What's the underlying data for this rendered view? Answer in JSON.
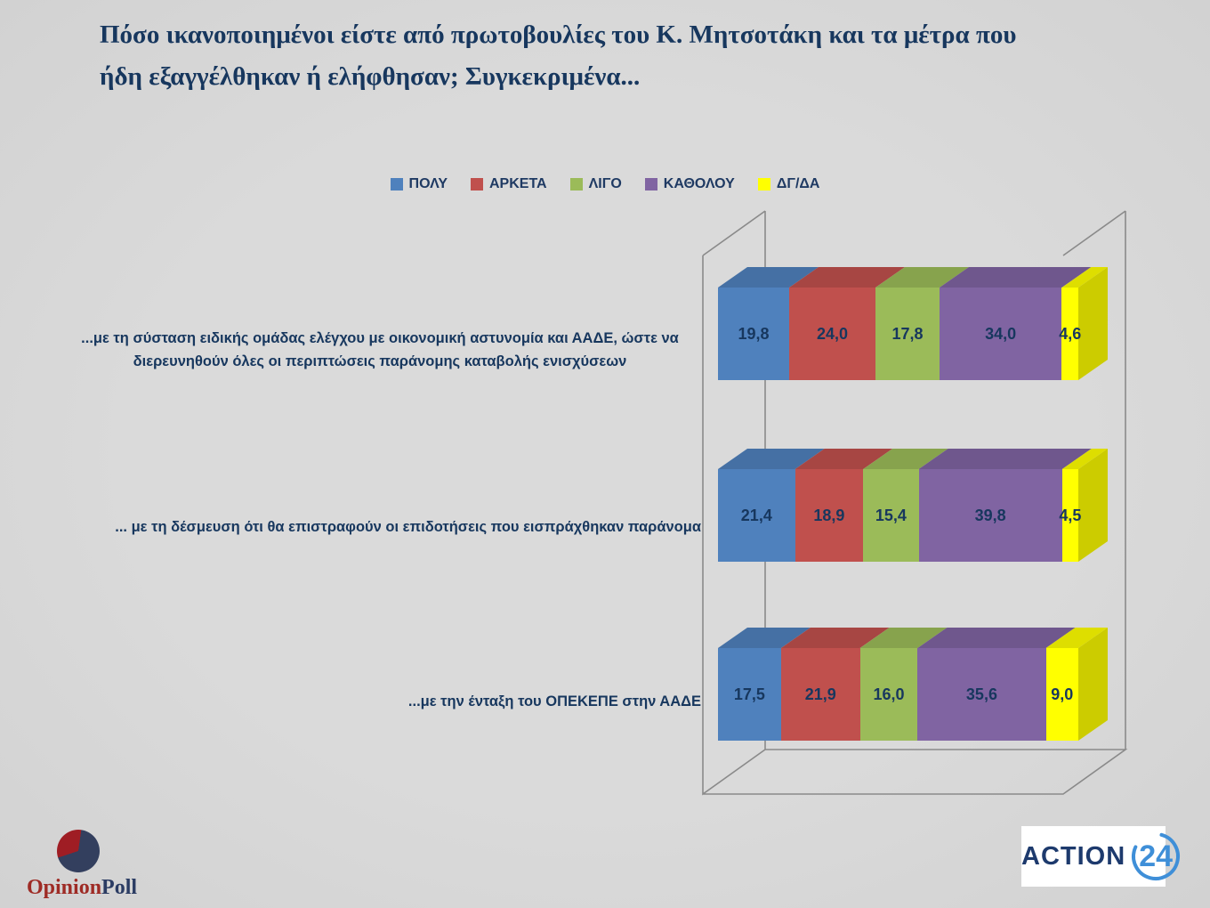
{
  "background": "#d8d8d8",
  "title": {
    "lines": [
      "Πόσο ικανοποιημένοι είστε από πρωτοβουλίες του Κ. Μητσοτάκη και τα μέτρα που",
      "ήδη εξαγγέλθηκαν ή ελήφθησαν; Συγκεκριμένα..."
    ],
    "color": "#17375e"
  },
  "legend": {
    "items": [
      {
        "label": "ΠΟΛΥ",
        "color": "#4f81bd"
      },
      {
        "label": "ΑΡΚΕΤΑ",
        "color": "#c0504d"
      },
      {
        "label": "ΛΙΓΟ",
        "color": "#9bbb59"
      },
      {
        "label": "ΚΑΘΟΛΟΥ",
        "color": "#8064a2"
      },
      {
        "label": "ΔΓ/ΔΑ",
        "color": "#ffff00"
      }
    ]
  },
  "chart_data": {
    "type": "bar",
    "variant": "3d-horizontal-stacked",
    "title": "Πόσο ικανοποιημένοι είστε από πρωτοβουλίες του Κ. Μητσοτάκη και τα μέτρα που ήδη εξαγγέλθηκαν ή ελήφθησαν; Συγκεκριμένα...",
    "series": [
      "ΠΟΛΥ",
      "ΑΡΚΕΤΑ",
      "ΛΙΓΟ",
      "ΚΑΘΟΛΟΥ",
      "ΔΓ/ΔΑ"
    ],
    "series_colors": [
      "#4f81bd",
      "#c0504d",
      "#9bbb59",
      "#8064a2",
      "#ffff00"
    ],
    "legend_position": "top",
    "grid": false,
    "xlim": [
      0,
      100
    ],
    "categories": [
      "...με τη σύσταση ειδικής ομάδας ελέγχου με οικονομική αστυνομία και ΑΑΔΕ, ώστε να διερευνηθούν όλες οι περιπτώσεις παράνομης καταβολής ενισχύσεων",
      "... με τη δέσμευση ότι θα επιστραφούν οι επιδοτήσεις που εισπράχθηκαν παράνομα",
      "...με την ένταξη του ΟΠΕΚΕΠΕ στην ΑΑΔΕ"
    ],
    "rows": [
      {
        "values": [
          19.8,
          24.0,
          17.8,
          34.0,
          4.6
        ],
        "display": [
          "19,8",
          "24,0",
          "17,8",
          "34,0",
          "4,6"
        ]
      },
      {
        "values": [
          21.4,
          18.9,
          15.4,
          39.8,
          4.5
        ],
        "display": [
          "21,4",
          "18,9",
          "15,4",
          "39,8",
          "4,5"
        ]
      },
      {
        "values": [
          17.5,
          21.9,
          16.0,
          35.6,
          9.0
        ],
        "display": [
          "17,5",
          "21,9",
          "16,0",
          "35,6",
          "9,0"
        ]
      }
    ],
    "value_label_color": "#17375e",
    "frame_color": "#8a8a8a"
  },
  "branding": {
    "opinion_poll": {
      "part1": "Opinion",
      "part2": "Poll",
      "part1_color": "#9e2b25",
      "part2_color": "#2b3c63",
      "pie_main_color": "#333f5e",
      "pie_slice_color": "#9f1d24"
    },
    "action24": {
      "text": "ACTION",
      "number": "24",
      "text_color": "#1d3a6d",
      "number_color": "#3f8fd8",
      "bg": "#ffffff"
    }
  }
}
